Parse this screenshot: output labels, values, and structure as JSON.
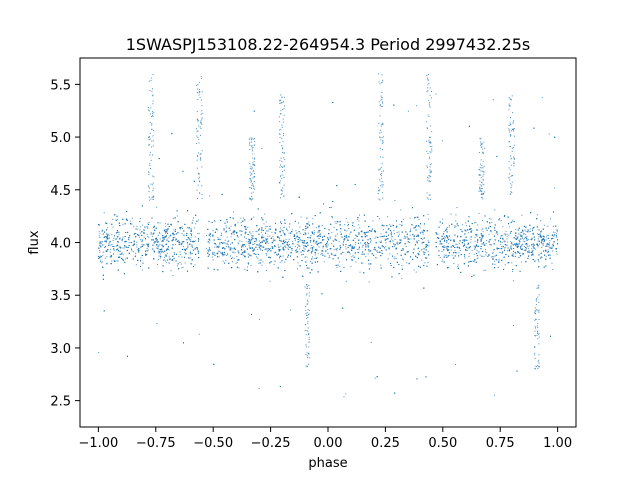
{
  "chart_data": {
    "type": "scatter",
    "title": "1SWASPJ153108.22-264954.3 Period 2997432.25s",
    "xlabel": "phase",
    "ylabel": "flux",
    "xlim": [
      -1.08,
      1.08
    ],
    "ylim": [
      2.25,
      5.75
    ],
    "xticks": [
      -1.0,
      -0.75,
      -0.5,
      -0.25,
      0.0,
      0.25,
      0.5,
      0.75,
      1.0
    ],
    "xtick_labels": [
      "−1.00",
      "−0.75",
      "−0.50",
      "−0.25",
      "0.00",
      "0.25",
      "0.50",
      "0.75",
      "1.00"
    ],
    "yticks": [
      2.5,
      3.0,
      3.5,
      4.0,
      4.5,
      5.0,
      5.5
    ],
    "ytick_labels": [
      "2.5",
      "3.0",
      "3.5",
      "4.0",
      "4.5",
      "5.0",
      "5.5"
    ],
    "grid": false,
    "legend": "none",
    "point_color": "#1f77b4",
    "series": [
      {
        "phase_range": [
          -1.0,
          1.0
        ],
        "flux_center": 4.0,
        "flux_core_range": [
          3.5,
          4.5
        ],
        "flux_extent": [
          2.45,
          5.65
        ],
        "gaps": [
          [
            -0.56,
            -0.53
          ],
          [
            0.44,
            0.47
          ]
        ],
        "dips": [
          {
            "phase": -0.09,
            "flux": 2.8
          },
          {
            "phase": 0.91,
            "flux": 2.8
          }
        ],
        "spikes": [
          {
            "phase": -0.77,
            "flux": 5.6
          },
          {
            "phase": -0.56,
            "flux": 5.6
          },
          {
            "phase": -0.33,
            "flux": 5.0
          },
          {
            "phase": -0.2,
            "flux": 5.4
          },
          {
            "phase": 0.23,
            "flux": 5.6
          },
          {
            "phase": 0.44,
            "flux": 5.6
          },
          {
            "phase": 0.67,
            "flux": 5.0
          },
          {
            "phase": 0.8,
            "flux": 5.4
          }
        ]
      }
    ]
  }
}
